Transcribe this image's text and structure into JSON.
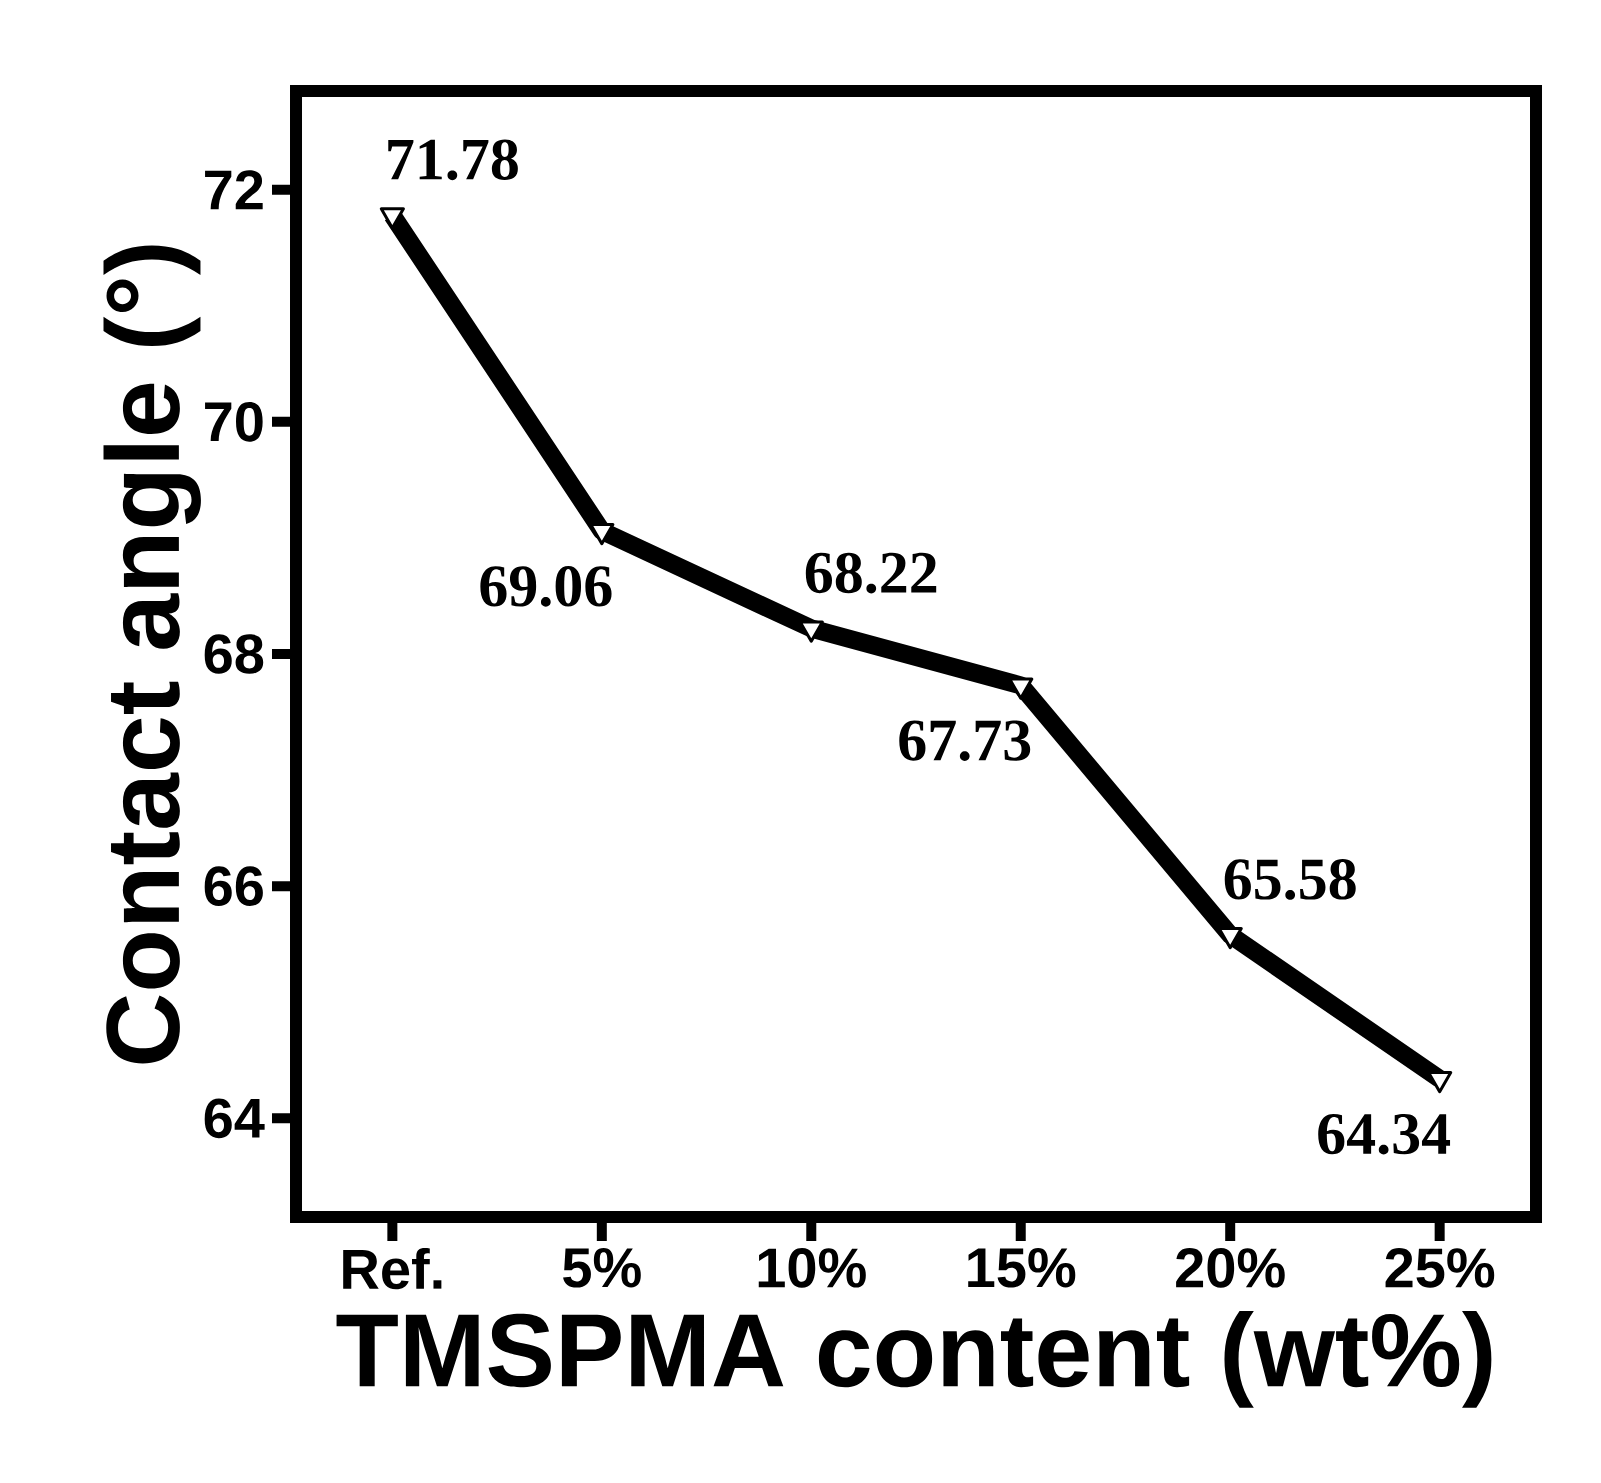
{
  "chart_data": {
    "type": "line",
    "xlabel": "TMSPMA content (wt%)",
    "ylabel": "Contact angle (°)",
    "categories": [
      "Ref.",
      "5%",
      "10%",
      "15%",
      "20%",
      "25%"
    ],
    "values": [
      71.78,
      69.06,
      68.22,
      67.73,
      65.58,
      64.34
    ],
    "color": "#000000",
    "marker": "triangle",
    "data_labels": true,
    "ylim": [
      63.15,
      72.85
    ],
    "yticks": [
      64,
      66,
      68,
      70,
      72
    ]
  }
}
